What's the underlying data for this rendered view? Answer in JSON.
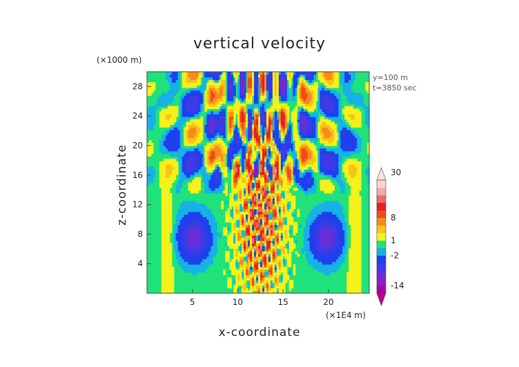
{
  "chart_data": {
    "type": "heatmap",
    "title": "vertical velocity",
    "xlabel": "x-coordinate",
    "ylabel": "z-coordinate",
    "x_unit": "(×1E4 m)",
    "y_unit": "(×1000 m)",
    "annotations": [
      "y=100 m",
      "t=3850 sec"
    ],
    "xlim": [
      0,
      24.5
    ],
    "ylim": [
      0,
      30
    ],
    "xticks": [
      5,
      10,
      15,
      20
    ],
    "yticks": [
      4,
      8,
      12,
      16,
      20,
      24,
      28
    ],
    "grid": false,
    "colorbar": {
      "levels": [
        -20,
        -17,
        -14,
        -11,
        -8,
        -5,
        -2,
        -0.5,
        1,
        4,
        6,
        8,
        10,
        14,
        18,
        22,
        26,
        30,
        34
      ],
      "labels": [
        30,
        8,
        1,
        -2,
        -14
      ],
      "colors": [
        "#c0008a",
        "#a800b0",
        "#8a20c8",
        "#6a2ed8",
        "#3f3ae6",
        "#1f40ec",
        "#16b2e6",
        "#20e27a",
        "#f4f21a",
        "#f9c21c",
        "#f88a1a",
        "#f14a1a",
        "#e81e1e",
        "#ef6a6a",
        "#f7a8a8",
        "#f9d4d0",
        "#fbe4e0"
      ]
    }
  }
}
